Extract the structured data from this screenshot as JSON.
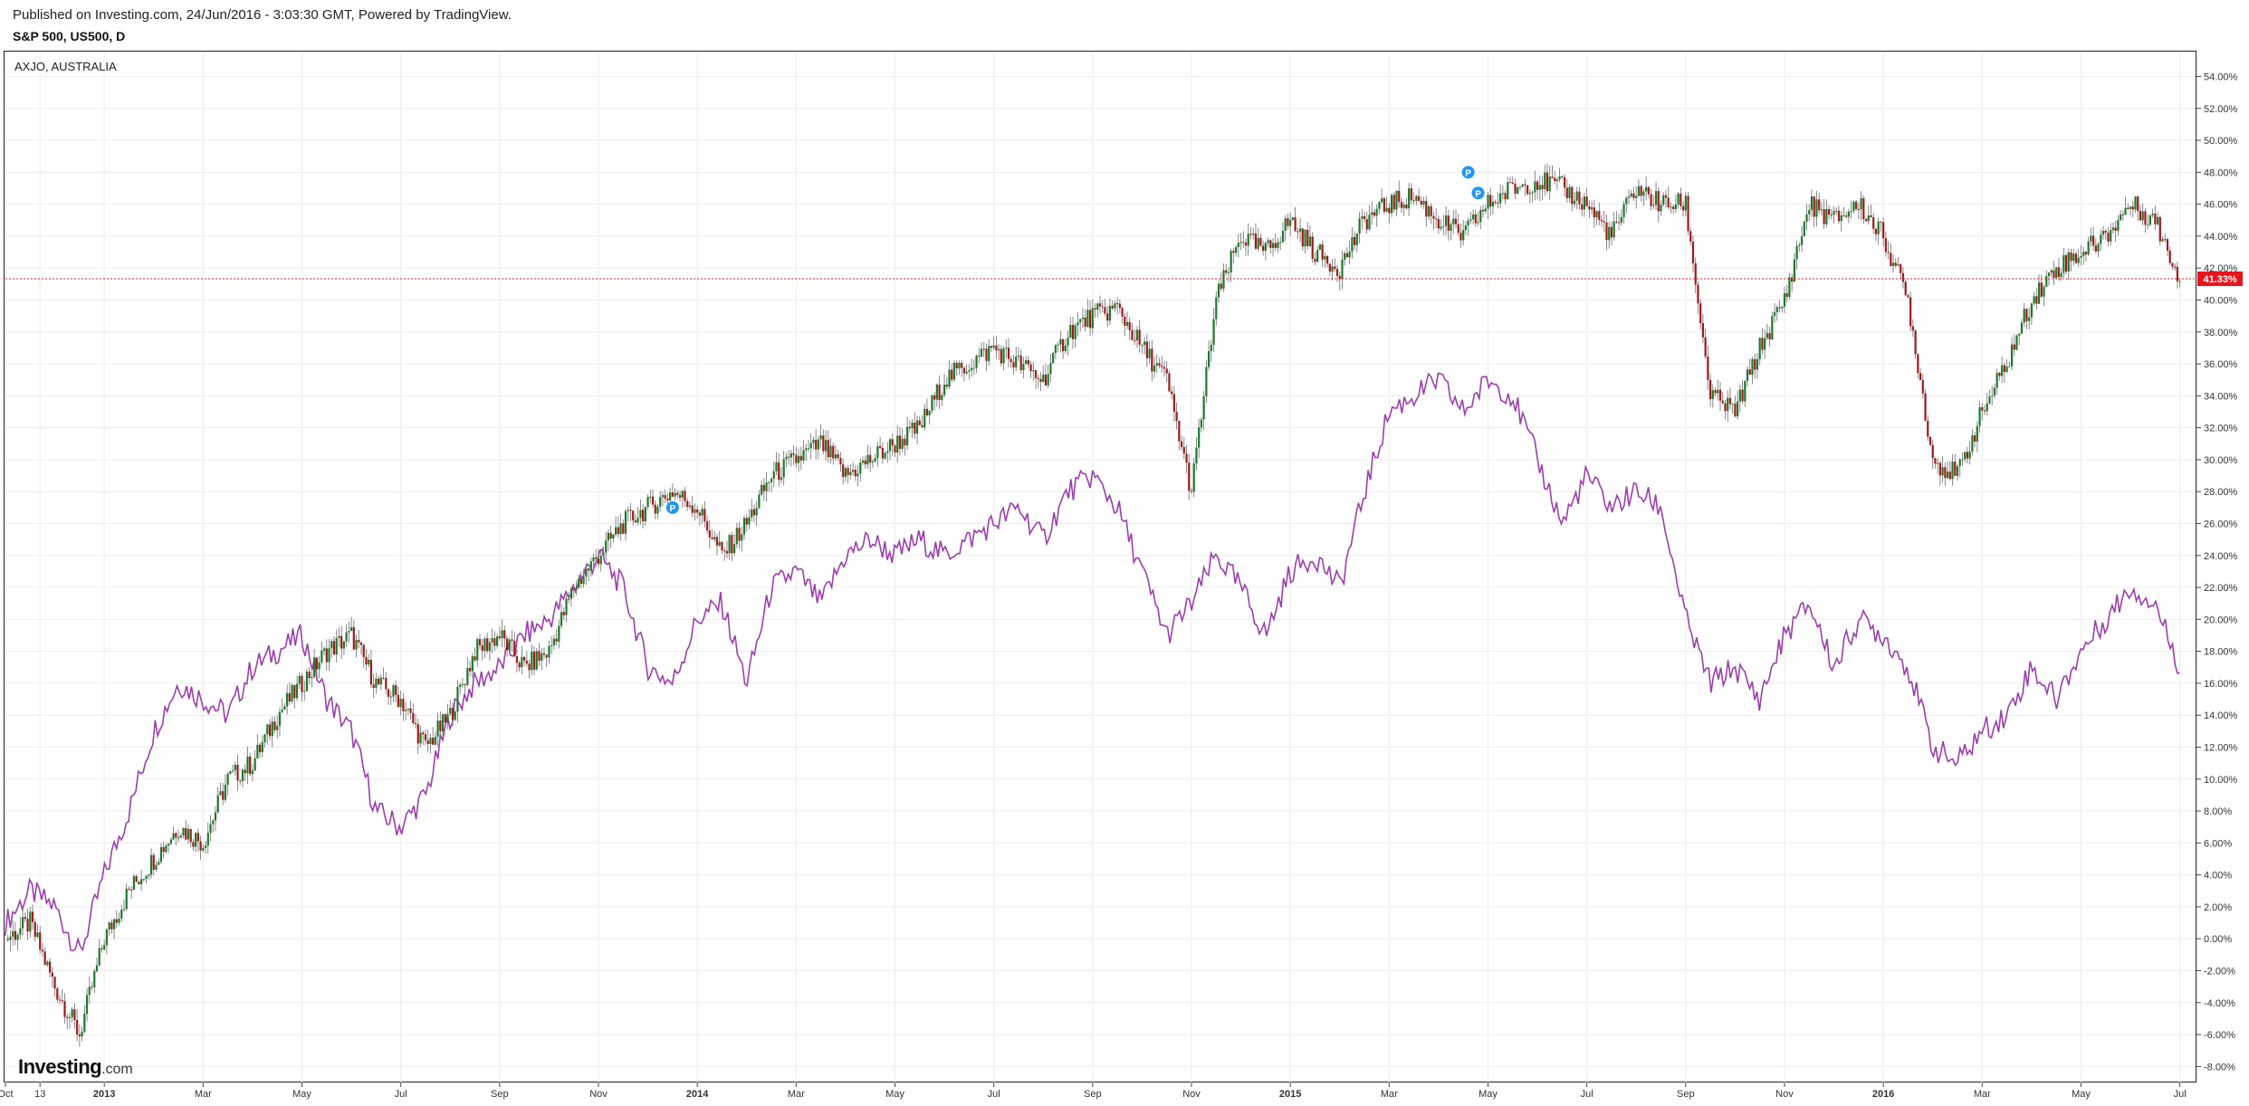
{
  "header": {
    "published": "Published on Investing.com, 24/Jun/2016 - 3:03:30 GMT, Powered by TradingView.",
    "symbol": "S&P 500, US500, D"
  },
  "compare_label": "AXJO, AUSTRALIA",
  "logo": {
    "main": "Investing",
    "suffix": ".com"
  },
  "chart_data": {
    "type": "line",
    "title": "S&P 500, US500, D",
    "y_unit": "%",
    "ylim": [
      -9,
      55.5
    ],
    "y_ticks": [
      54,
      52,
      50,
      48,
      46,
      44,
      42,
      40,
      38,
      36,
      34,
      32,
      30,
      28,
      26,
      24,
      22,
      20,
      18,
      16,
      14,
      12,
      10,
      8,
      6,
      4,
      2,
      0,
      -2,
      -4,
      -6,
      -8
    ],
    "x_tick_labels": [
      {
        "label": "Oct",
        "t": 0.0
      },
      {
        "label": "13",
        "t": 0.7
      },
      {
        "label": "2013",
        "t": 2.0
      },
      {
        "label": "Mar",
        "t": 4.0
      },
      {
        "label": "May",
        "t": 6.0
      },
      {
        "label": "Jul",
        "t": 8.0
      },
      {
        "label": "Sep",
        "t": 10.0
      },
      {
        "label": "Nov",
        "t": 12.0
      },
      {
        "label": "2014",
        "t": 14.0
      },
      {
        "label": "Mar",
        "t": 16.0
      },
      {
        "label": "May",
        "t": 18.0
      },
      {
        "label": "Jul",
        "t": 20.0
      },
      {
        "label": "Sep",
        "t": 22.0
      },
      {
        "label": "Nov",
        "t": 24.0
      },
      {
        "label": "2015",
        "t": 26.0
      },
      {
        "label": "Mar",
        "t": 28.0
      },
      {
        "label": "May",
        "t": 30.0
      },
      {
        "label": "Jul",
        "t": 32.0
      },
      {
        "label": "Sep",
        "t": 34.0
      },
      {
        "label": "Nov",
        "t": 36.0
      },
      {
        "label": "2016",
        "t": 38.0
      },
      {
        "label": "Mar",
        "t": 40.0
      },
      {
        "label": "May",
        "t": 42.0
      },
      {
        "label": "Jul",
        "t": 44.0
      }
    ],
    "x_range": [
      0,
      44.3
    ],
    "series": [
      {
        "name": "S&P 500",
        "style": "candles",
        "color_up": "#1b7a2a",
        "color_down": "#9e1a1a",
        "points": [
          [
            0,
            0
          ],
          [
            0.5,
            1
          ],
          [
            1,
            -3
          ],
          [
            1.5,
            -6
          ],
          [
            2,
            0
          ],
          [
            2.5,
            3
          ],
          [
            3,
            5
          ],
          [
            3.5,
            7
          ],
          [
            4,
            6
          ],
          [
            4.5,
            10
          ],
          [
            5,
            11
          ],
          [
            5.5,
            14
          ],
          [
            6,
            16
          ],
          [
            6.5,
            18
          ],
          [
            7,
            19
          ],
          [
            7.5,
            16
          ],
          [
            8,
            15
          ],
          [
            8.5,
            12
          ],
          [
            9,
            14
          ],
          [
            9.5,
            18
          ],
          [
            10,
            19
          ],
          [
            10.5,
            17
          ],
          [
            11,
            18
          ],
          [
            11.5,
            22
          ],
          [
            12,
            24
          ],
          [
            12.5,
            26
          ],
          [
            13,
            27
          ],
          [
            13.5,
            28
          ],
          [
            14,
            27
          ],
          [
            14.5,
            24
          ],
          [
            15,
            26
          ],
          [
            15.5,
            29
          ],
          [
            16,
            30
          ],
          [
            16.5,
            31
          ],
          [
            17,
            29
          ],
          [
            17.5,
            30
          ],
          [
            18,
            31
          ],
          [
            18.5,
            32
          ],
          [
            19,
            35
          ],
          [
            19.5,
            36
          ],
          [
            20,
            37
          ],
          [
            20.5,
            36
          ],
          [
            21,
            35
          ],
          [
            21.5,
            38
          ],
          [
            22,
            39
          ],
          [
            22.5,
            39.5
          ],
          [
            23,
            37
          ],
          [
            23.5,
            35
          ],
          [
            24,
            28
          ],
          [
            24.5,
            40
          ],
          [
            25,
            44
          ],
          [
            25.5,
            43
          ],
          [
            26,
            45
          ],
          [
            26.5,
            43
          ],
          [
            27,
            42
          ],
          [
            27.5,
            45
          ],
          [
            28,
            46
          ],
          [
            28.5,
            46.5
          ],
          [
            29,
            45
          ],
          [
            29.5,
            44
          ],
          [
            30,
            46
          ],
          [
            30.5,
            47
          ],
          [
            31,
            47.5
          ],
          [
            31.5,
            47
          ],
          [
            32,
            46
          ],
          [
            32.5,
            44
          ],
          [
            33,
            47
          ],
          [
            33.5,
            46
          ],
          [
            34,
            46
          ],
          [
            34.5,
            34
          ],
          [
            35,
            33
          ],
          [
            35.5,
            37
          ],
          [
            36,
            40
          ],
          [
            36.5,
            46
          ],
          [
            37,
            45
          ],
          [
            37.5,
            46
          ],
          [
            38,
            44
          ],
          [
            38.5,
            40
          ],
          [
            39,
            30
          ],
          [
            39.5,
            29
          ],
          [
            40,
            33
          ],
          [
            40.5,
            36
          ],
          [
            41,
            40
          ],
          [
            41.5,
            42
          ],
          [
            42,
            43
          ],
          [
            42.5,
            44
          ],
          [
            43,
            46
          ],
          [
            43.5,
            45
          ],
          [
            44,
            41.33
          ]
        ]
      },
      {
        "name": "AXJO",
        "style": "line",
        "color": "#9b3fad",
        "points": [
          [
            0,
            1
          ],
          [
            0.5,
            3
          ],
          [
            1,
            2
          ],
          [
            1.5,
            -1
          ],
          [
            2,
            4
          ],
          [
            2.5,
            8
          ],
          [
            3,
            13
          ],
          [
            3.5,
            16
          ],
          [
            4,
            15
          ],
          [
            4.5,
            14
          ],
          [
            5,
            17
          ],
          [
            5.5,
            18
          ],
          [
            6,
            19
          ],
          [
            6.5,
            15
          ],
          [
            7,
            13
          ],
          [
            7.5,
            8
          ],
          [
            8,
            7
          ],
          [
            8.5,
            9
          ],
          [
            9,
            14
          ],
          [
            9.5,
            16
          ],
          [
            10,
            17
          ],
          [
            10.5,
            19
          ],
          [
            11,
            20
          ],
          [
            11.5,
            22
          ],
          [
            12,
            24
          ],
          [
            12.5,
            22
          ],
          [
            13,
            17
          ],
          [
            13.5,
            16
          ],
          [
            14,
            20
          ],
          [
            14.5,
            21
          ],
          [
            15,
            16
          ],
          [
            15.5,
            22
          ],
          [
            16,
            23
          ],
          [
            16.5,
            21
          ],
          [
            17,
            24
          ],
          [
            17.5,
            25
          ],
          [
            18,
            24
          ],
          [
            18.5,
            25
          ],
          [
            19,
            24
          ],
          [
            19.5,
            25
          ],
          [
            20,
            26
          ],
          [
            20.5,
            27
          ],
          [
            21,
            25
          ],
          [
            21.5,
            28
          ],
          [
            22,
            29
          ],
          [
            22.5,
            27
          ],
          [
            23,
            23
          ],
          [
            23.5,
            19
          ],
          [
            24,
            21
          ],
          [
            24.5,
            24
          ],
          [
            25,
            22
          ],
          [
            25.5,
            19
          ],
          [
            26,
            23
          ],
          [
            26.5,
            24
          ],
          [
            27,
            22
          ],
          [
            27.5,
            28
          ],
          [
            28,
            33
          ],
          [
            28.5,
            34
          ],
          [
            29,
            35
          ],
          [
            29.5,
            33
          ],
          [
            30,
            35
          ],
          [
            30.5,
            34
          ],
          [
            31,
            30
          ],
          [
            31.5,
            26
          ],
          [
            32,
            29
          ],
          [
            32.5,
            27
          ],
          [
            33,
            28
          ],
          [
            33.5,
            27
          ],
          [
            34,
            20
          ],
          [
            34.5,
            16
          ],
          [
            35,
            17
          ],
          [
            35.5,
            15
          ],
          [
            36,
            19
          ],
          [
            36.5,
            21
          ],
          [
            37,
            17
          ],
          [
            37.5,
            20
          ],
          [
            38,
            19
          ],
          [
            38.5,
            17
          ],
          [
            39,
            12
          ],
          [
            39.5,
            11
          ],
          [
            40,
            13
          ],
          [
            40.5,
            14
          ],
          [
            41,
            17
          ],
          [
            41.5,
            15
          ],
          [
            42,
            18
          ],
          [
            42.5,
            20
          ],
          [
            43,
            22
          ],
          [
            43.5,
            21
          ],
          [
            44,
            17
          ]
        ]
      }
    ],
    "last_value_label": "41.33%",
    "annotations": [
      {
        "label": "P",
        "t": 13.5,
        "y": 27
      },
      {
        "label": "P",
        "t": 29.6,
        "y": 48
      },
      {
        "label": "P",
        "t": 29.8,
        "y": 46.7
      }
    ],
    "grid": true
  }
}
